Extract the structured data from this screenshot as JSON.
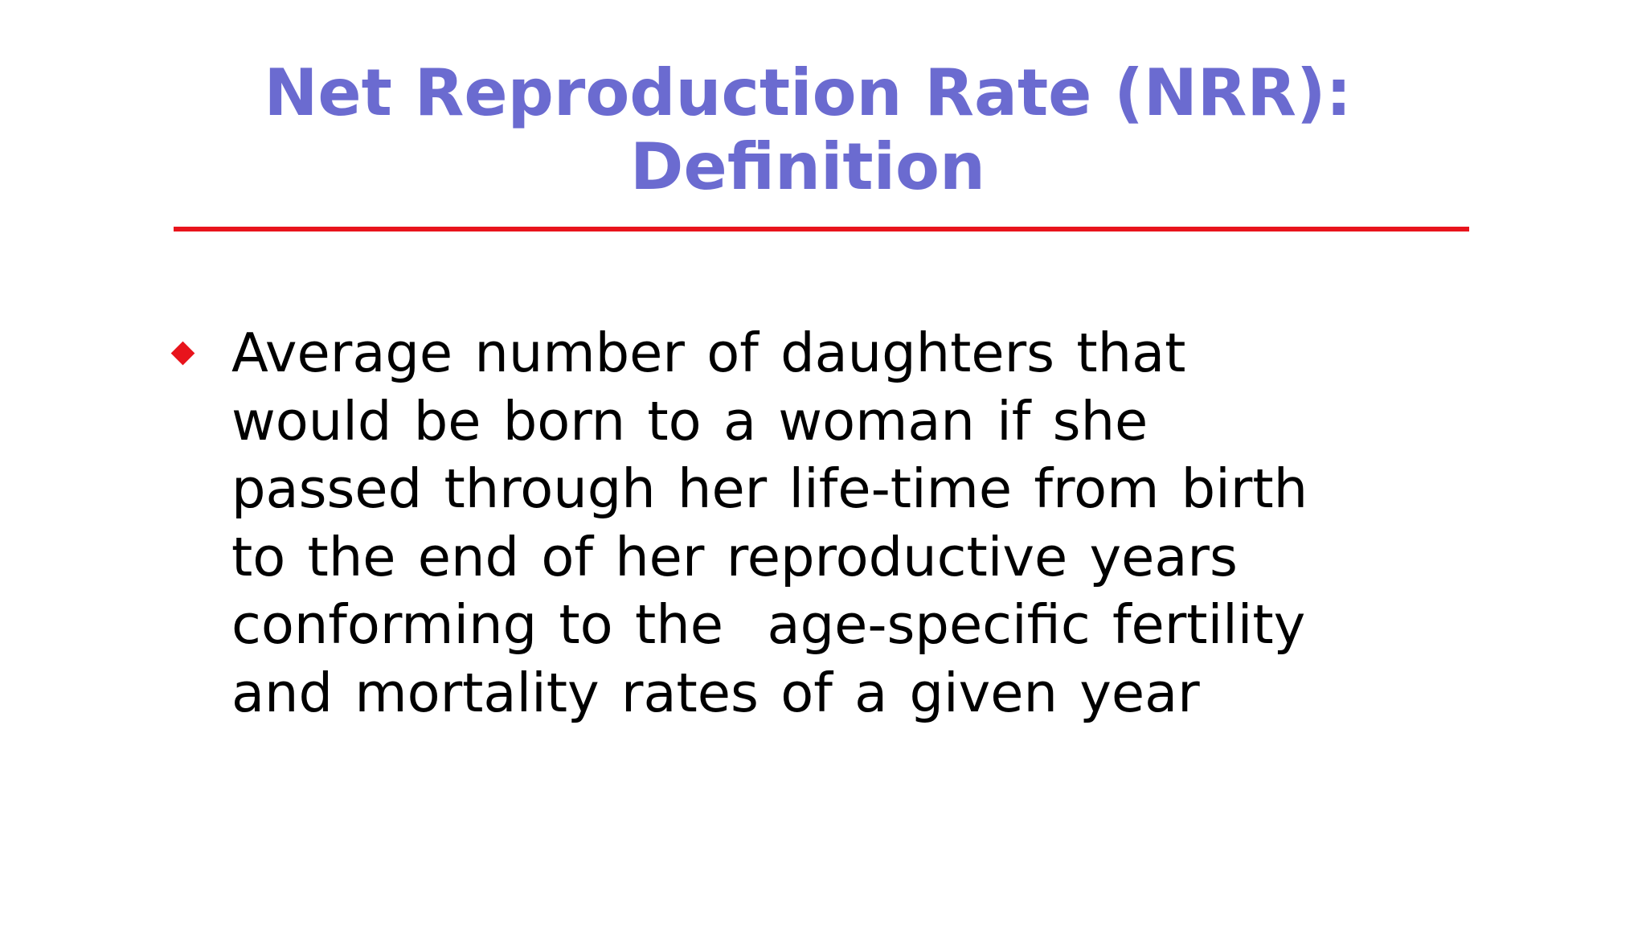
{
  "slide": {
    "title_lines": [
      "Net Reproduction Rate (NRR):",
      "Definition"
    ],
    "bullet": {
      "lines": [
        "Average number of daughters that",
        "would be born to a woman if she",
        "passed through her life-time from birth",
        "to the end of her reproductive years",
        "conforming to the  age-specific fertility",
        "and mortality rates of a given year"
      ]
    }
  },
  "colors": {
    "title": "#6b6bd0",
    "accent": "#e8141c",
    "body_text": "#000000",
    "background": "#ffffff"
  },
  "icons": {
    "bullet": "red-diamond-bullet-icon"
  }
}
